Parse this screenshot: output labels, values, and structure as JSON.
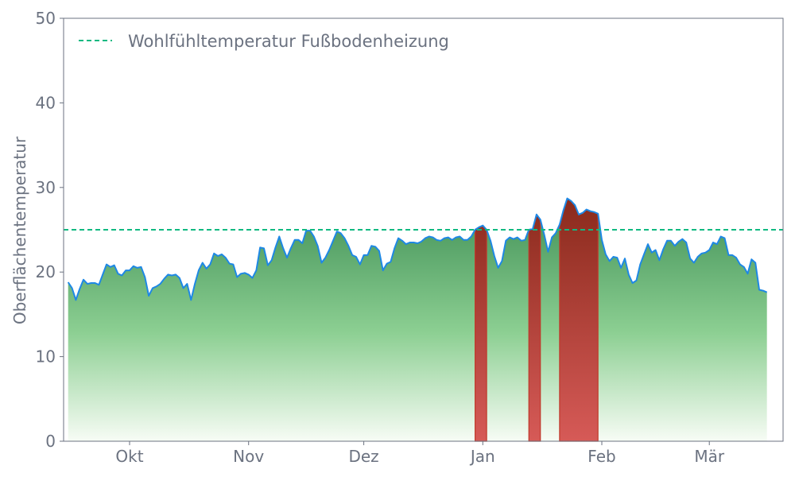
{
  "chart_data": {
    "type": "area",
    "title": "",
    "xlabel": "",
    "ylabel": "Oberflächentemperatur",
    "ylim": [
      0,
      50
    ],
    "yticks": [
      0,
      10,
      20,
      30,
      40,
      50
    ],
    "xticks": [
      {
        "date": "10-01",
        "label": "Okt"
      },
      {
        "date": "11-01",
        "label": "Nov"
      },
      {
        "date": "12-01",
        "label": "Dez"
      },
      {
        "date": "01-01",
        "label": "Jan"
      },
      {
        "date": "02-01",
        "label": "Feb"
      },
      {
        "date": "03-01",
        "label": "Mär"
      }
    ],
    "grid": false,
    "legend": {
      "placement": "top-left",
      "entries": [
        "Wohlfühltemperatur Fußbodenheizung"
      ]
    },
    "threshold": {
      "name": "Wohlfühltemperatur Fußbodenheizung",
      "value": 25,
      "color": "#10b981",
      "style": "dashed"
    },
    "colors": {
      "line": "#1e88e5",
      "fill_below": "#4a9a62",
      "fill_above": "#a8362a"
    },
    "series": [
      {
        "values_by_month": {
          "09": {
            "start_day": 15,
            "values": [
              18.8,
              18.1,
              16.7,
              18.0,
              19.1,
              18.6,
              18.7,
              18.7,
              18.5,
              19.7,
              20.9,
              20.6,
              20.8,
              19.8,
              19.6,
              20.2
            ]
          },
          "10": {
            "start_day": 1,
            "values": [
              20.2,
              20.7,
              20.5,
              20.6,
              19.4,
              17.2,
              18.1,
              18.3,
              18.6,
              19.2,
              19.7,
              19.6,
              19.7,
              19.3,
              18.1,
              18.6,
              16.7,
              18.6,
              20.2,
              21.1,
              20.4,
              20.9,
              22.2,
              21.9,
              22.1,
              21.7,
              21.0,
              20.9,
              19.4,
              19.8,
              19.9
            ]
          },
          "11": {
            "start_day": 1,
            "values": [
              19.7,
              19.3,
              20.2,
              22.9,
              22.8,
              20.8,
              21.4,
              22.9,
              24.2,
              22.8,
              21.7,
              22.8,
              23.8,
              23.8,
              23.4,
              24.9,
              24.9,
              24.2,
              23.1,
              21.1,
              21.7,
              22.6,
              23.7,
              24.8,
              24.6,
              24.0,
              23.1,
              22.0,
              21.8,
              20.9
            ]
          },
          "12": {
            "start_day": 1,
            "values": [
              22.0,
              22.0,
              23.1,
              23.0,
              22.5,
              20.2,
              21.0,
              21.2,
              22.8,
              24.0,
              23.7,
              23.3,
              23.5,
              23.5,
              23.4,
              23.6,
              24.0,
              24.2,
              24.1,
              23.8,
              23.7,
              24.0,
              24.1,
              23.8,
              24.1,
              24.2,
              23.8,
              23.8,
              24.2,
              25.0,
              25.3
            ]
          },
          "01": {
            "start_day": 1,
            "values": [
              25.5,
              25.0,
              23.7,
              21.9,
              20.5,
              21.3,
              23.7,
              24.1,
              23.9,
              24.1,
              23.7,
              23.8,
              25.0,
              25.1,
              26.8,
              26.2,
              24.4,
              22.4,
              24.1,
              24.6,
              25.6,
              27.3,
              28.7,
              28.4,
              27.9,
              26.8,
              27.0,
              27.4,
              27.2,
              27.1,
              26.9
            ]
          },
          "02": {
            "start_day": 1,
            "values": [
              23.8,
              22.1,
              21.3,
              21.8,
              21.7,
              20.5,
              21.6,
              19.7,
              18.7,
              19.0,
              20.9,
              22.1,
              23.3,
              22.3,
              22.6,
              21.4,
              22.7,
              23.7,
              23.7,
              23.1,
              23.6,
              23.9,
              23.5,
              21.6,
              21.1,
              21.8,
              22.2,
              22.3
            ]
          },
          "03": {
            "start_day": 1,
            "values": [
              22.6,
              23.5,
              23.3,
              24.2,
              24.0,
              22.0,
              22.0,
              21.7,
              20.9,
              20.6,
              19.8,
              21.5,
              21.1,
              17.9,
              17.8,
              17.6
            ]
          }
        }
      }
    ]
  }
}
